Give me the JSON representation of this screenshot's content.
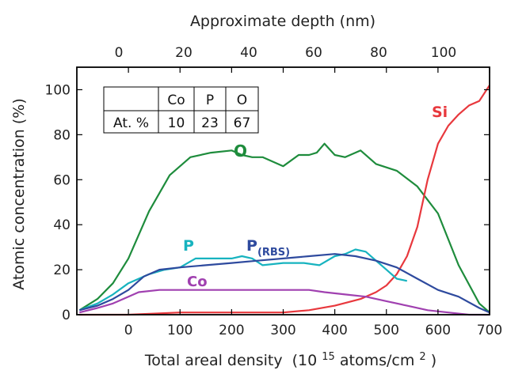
{
  "chart_data": {
    "type": "line",
    "xlabel": "Total areal density",
    "xlabel_unit_parts": [
      "(10",
      "15",
      " atoms/cm",
      "2",
      ")"
    ],
    "ylabel": "Atomic concentration (%)",
    "top_xlabel": "Approximate depth (nm)",
    "xlim": [
      -100,
      700
    ],
    "ylim": [
      0,
      110
    ],
    "x_ticks": [
      0,
      100,
      200,
      300,
      400,
      500,
      600,
      700
    ],
    "y_ticks": [
      0,
      20,
      40,
      60,
      80,
      100
    ],
    "top_ticks": [
      0,
      20,
      40,
      60,
      80,
      100
    ],
    "grid": false,
    "series": [
      {
        "name": "O",
        "label_parts": [
          "O"
        ],
        "color": "#1e8c3c",
        "x": [
          -95,
          -60,
          -30,
          0,
          40,
          80,
          120,
          160,
          200,
          220,
          240,
          260,
          300,
          330,
          350,
          365,
          380,
          400,
          420,
          450,
          480,
          520,
          560,
          600,
          640,
          680,
          700
        ],
        "y": [
          2,
          7,
          14,
          25,
          46,
          62,
          70,
          72,
          73,
          71,
          70,
          70,
          66,
          71,
          71,
          72,
          76,
          71,
          70,
          73,
          67,
          64,
          57,
          45,
          22,
          5,
          1
        ]
      },
      {
        "name": "Si",
        "label_parts": [
          "Si"
        ],
        "color": "#e8383d",
        "x": [
          -95,
          0,
          100,
          200,
          300,
          350,
          400,
          450,
          480,
          500,
          520,
          540,
          560,
          580,
          600,
          620,
          640,
          660,
          680,
          700
        ],
        "y": [
          0,
          0,
          1,
          1,
          1,
          2,
          4,
          7,
          10,
          13,
          18,
          26,
          39,
          60,
          76,
          84,
          89,
          93,
          95,
          102
        ]
      },
      {
        "name": "P",
        "label_parts": [
          "P"
        ],
        "color": "#17b3bf",
        "x": [
          -95,
          -60,
          -30,
          0,
          40,
          70,
          100,
          130,
          160,
          200,
          220,
          240,
          260,
          300,
          340,
          370,
          400,
          420,
          440,
          460,
          480,
          500,
          520,
          540
        ],
        "y": [
          2,
          5,
          9,
          14,
          18,
          20,
          21,
          25,
          25,
          25,
          26,
          25,
          22,
          23,
          23,
          22,
          26,
          27,
          29,
          28,
          24,
          20,
          16,
          15
        ]
      },
      {
        "name": "P (RBS)",
        "label_parts": [
          "P",
          "(RBS)"
        ],
        "color": "#2e4a9e",
        "x": [
          -95,
          -60,
          -30,
          0,
          30,
          60,
          100,
          150,
          200,
          250,
          300,
          350,
          400,
          440,
          480,
          520,
          560,
          600,
          640,
          680,
          700
        ],
        "y": [
          2,
          4,
          7,
          11,
          17,
          20,
          21,
          22,
          23,
          24,
          25,
          26,
          27,
          26,
          24,
          21,
          16,
          11,
          8,
          3,
          1
        ]
      },
      {
        "name": "Co",
        "label_parts": [
          "Co"
        ],
        "color": "#a040b0",
        "x": [
          -95,
          -60,
          -30,
          0,
          20,
          60,
          100,
          150,
          200,
          250,
          300,
          350,
          380,
          420,
          460,
          500,
          540,
          580,
          620,
          660,
          700
        ],
        "y": [
          1,
          3,
          5,
          8,
          10,
          11,
          11,
          11,
          11,
          11,
          11,
          11,
          10,
          9,
          8,
          6,
          4,
          2,
          1,
          0,
          0
        ]
      }
    ],
    "inset_table": {
      "headers": [
        "",
        "Co",
        "P",
        "O"
      ],
      "rows": [
        [
          "At. %",
          "10",
          "23",
          "67"
        ]
      ]
    }
  }
}
